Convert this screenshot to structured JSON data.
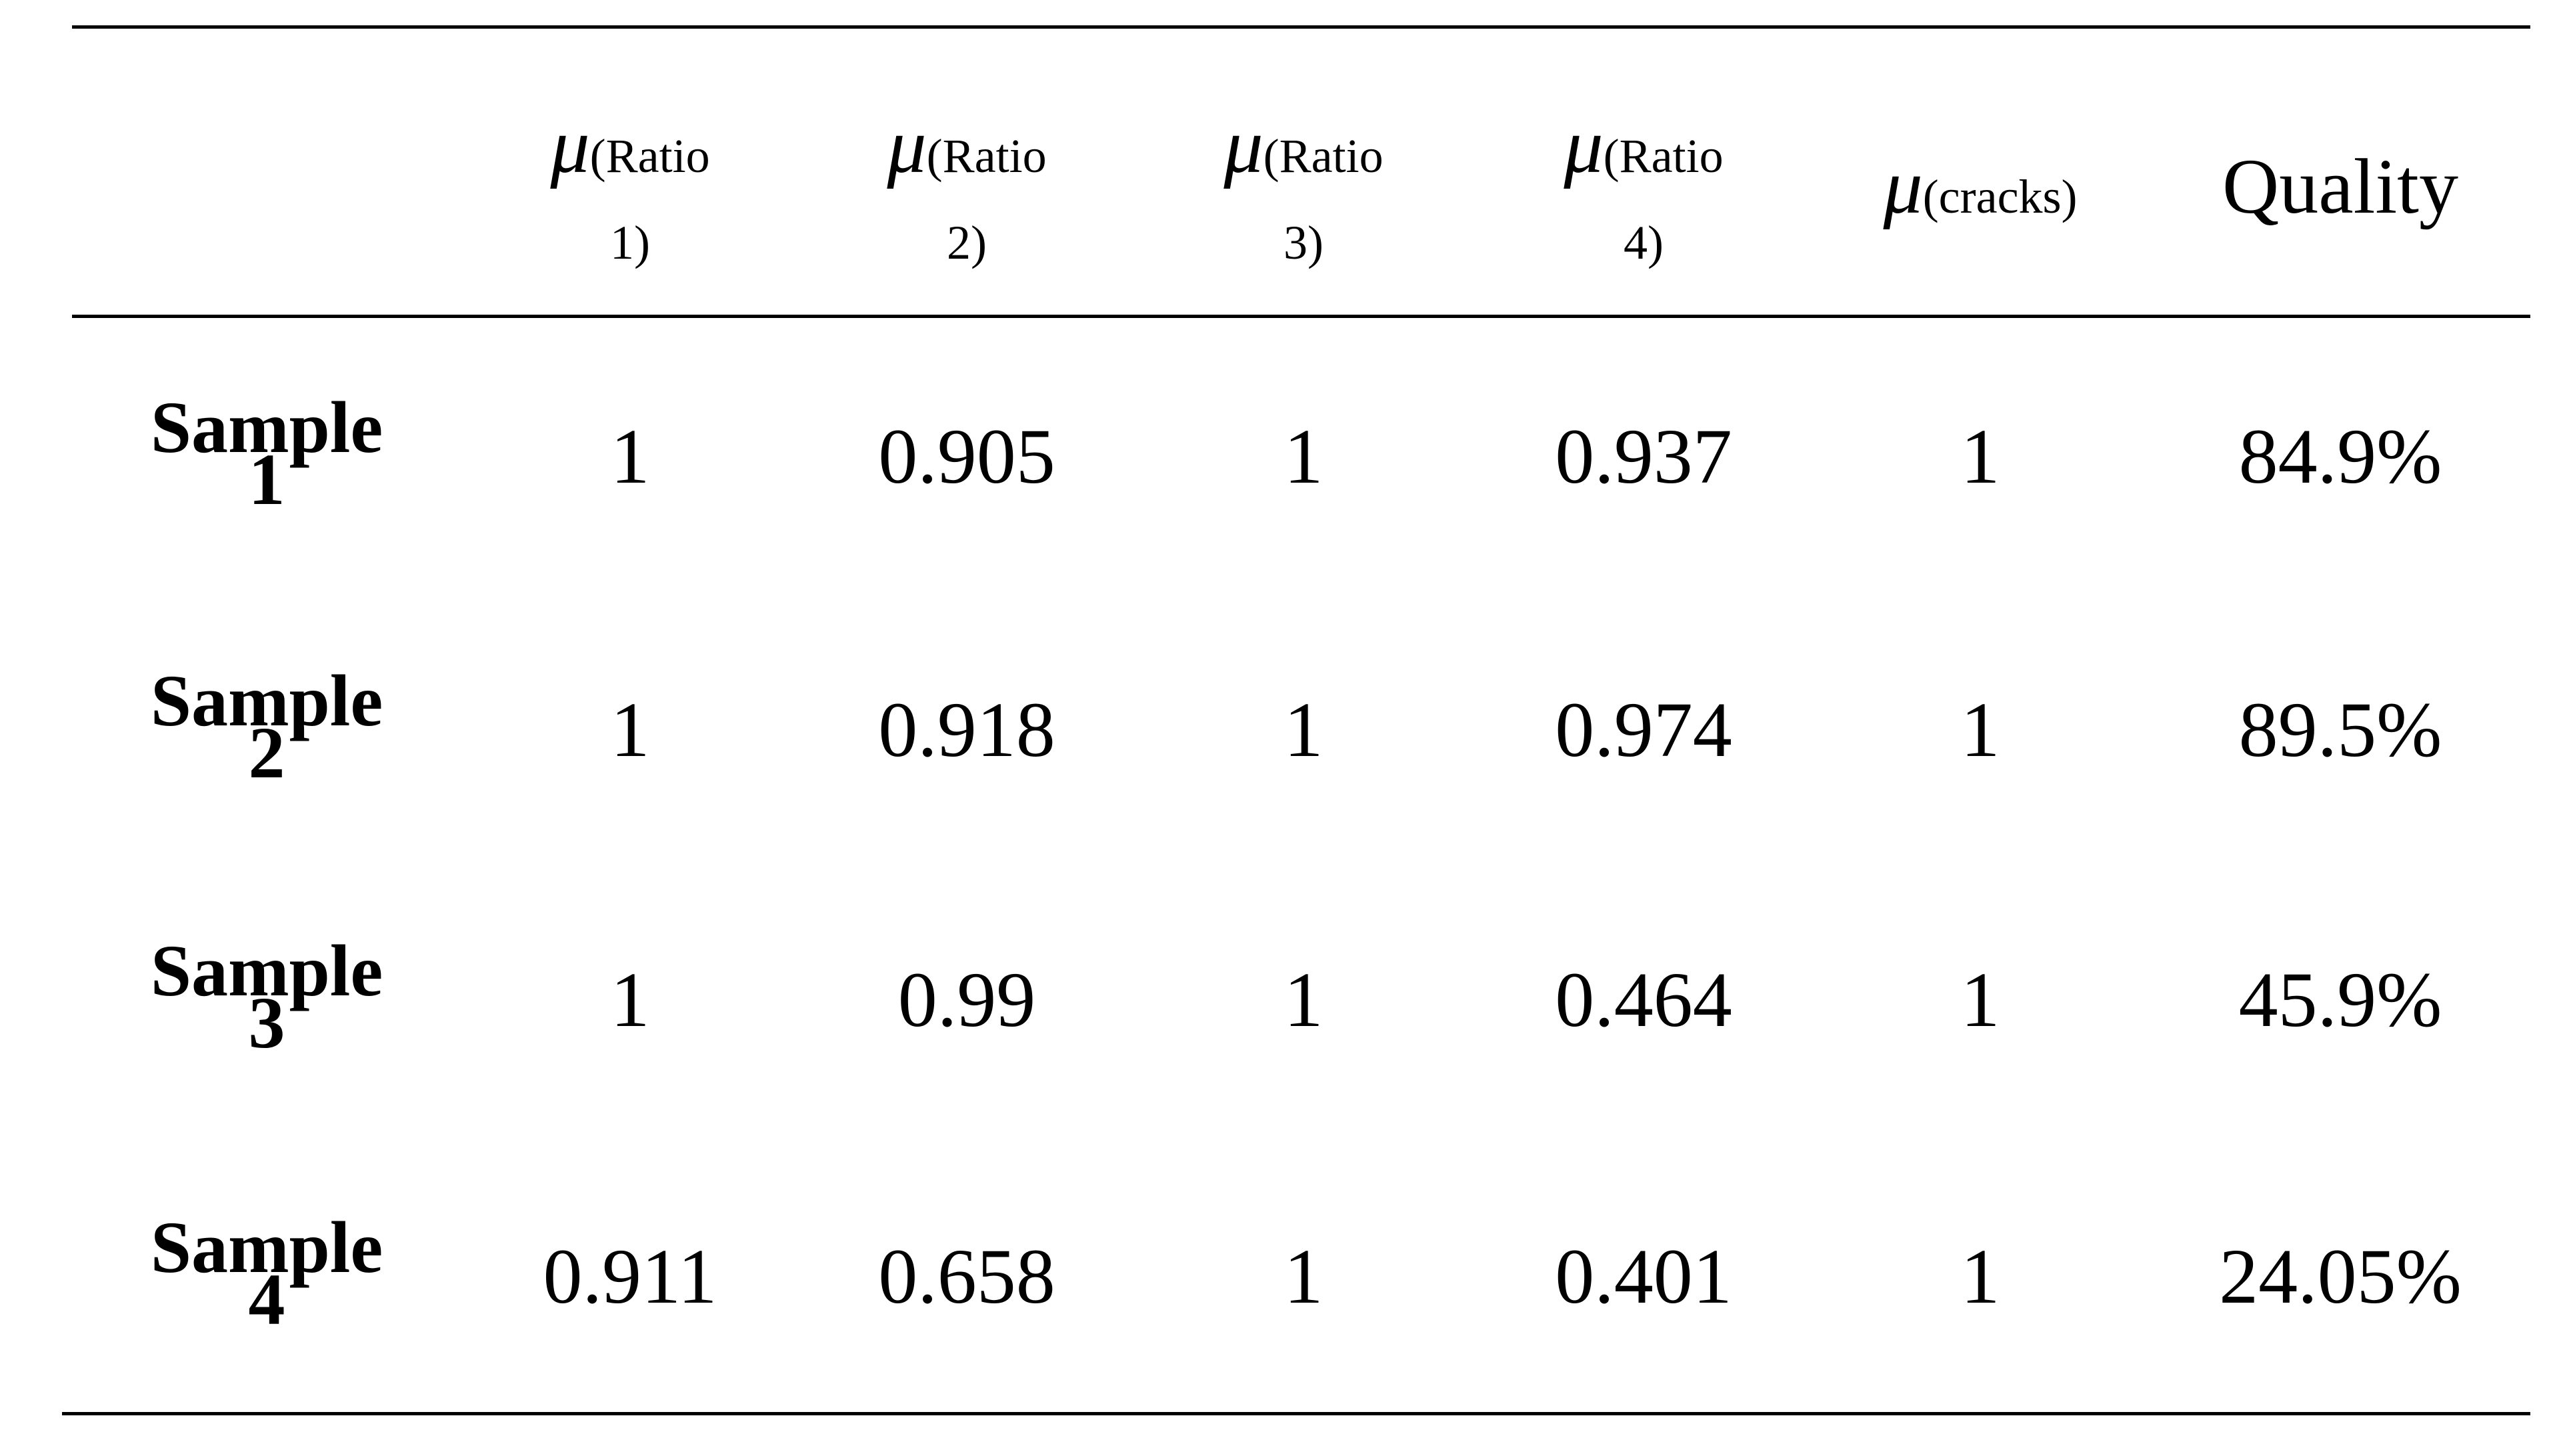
{
  "table": {
    "headers": [
      {
        "symbol": "μ",
        "sub": "(Ratio",
        "sub2": "1)"
      },
      {
        "symbol": "μ",
        "sub": "(Ratio",
        "sub2": "2)"
      },
      {
        "symbol": "μ",
        "sub": "(Ratio",
        "sub2": "3)"
      },
      {
        "symbol": "μ",
        "sub": "(Ratio",
        "sub2": "4)"
      },
      {
        "symbol": "μ",
        "sub": "(cracks)",
        "sub2": ""
      },
      {
        "label": "Quality"
      }
    ],
    "rows": [
      {
        "label_line1": "Sample",
        "label_line2": "1",
        "values": [
          "1",
          "0.905",
          "1",
          "0.937",
          "1",
          "84.9%"
        ]
      },
      {
        "label_line1": "Sample",
        "label_line2": "2",
        "values": [
          "1",
          "0.918",
          "1",
          "0.974",
          "1",
          "89.5%"
        ]
      },
      {
        "label_line1": "Sample",
        "label_line2": "3",
        "values": [
          "1",
          "0.99",
          "1",
          "0.464",
          "1",
          "45.9%"
        ]
      },
      {
        "label_line1": "Sample",
        "label_line2": "4",
        "values": [
          "0.911",
          "0.658",
          "1",
          "0.401",
          "1",
          "24.05%"
        ]
      }
    ]
  }
}
